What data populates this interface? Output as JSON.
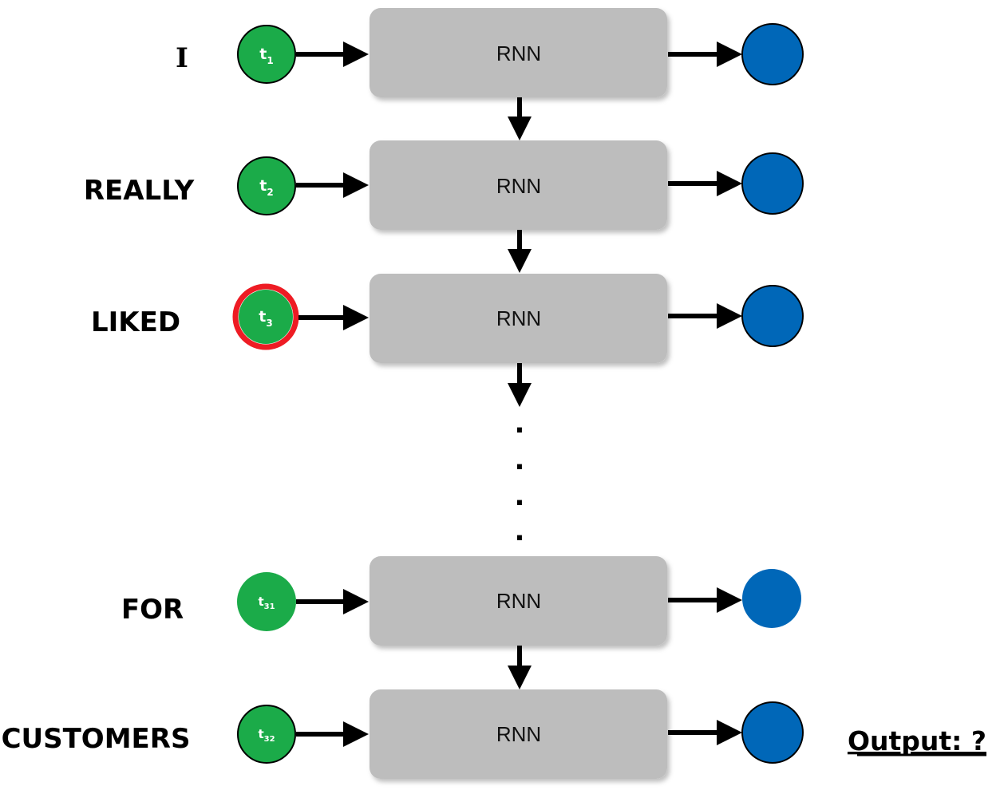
{
  "colors": {
    "token": "#1bab49",
    "output": "#0067b8",
    "highlight": "#ee1c24",
    "rnn_box": "#bdbdbd",
    "arrow": "#000000"
  },
  "rows": [
    {
      "word": "I",
      "token_main": "t",
      "token_sub": "1",
      "rnn": "RNN",
      "highlighted": false
    },
    {
      "word": "REALLY",
      "token_main": "t",
      "token_sub": "2",
      "rnn": "RNN",
      "highlighted": false
    },
    {
      "word": "LIKED",
      "token_main": "t",
      "token_sub": "3",
      "rnn": "RNN",
      "highlighted": true
    },
    {
      "word": "FOR",
      "token_main": "t",
      "token_sub": "31",
      "rnn": "RNN",
      "highlighted": false
    },
    {
      "word": "CUSTOMERS",
      "token_main": "t",
      "token_sub": "32",
      "rnn": "RNN",
      "highlighted": false
    }
  ],
  "ellipsis": [
    ".",
    ".",
    ".",
    "."
  ],
  "output_label": "Output: ?"
}
